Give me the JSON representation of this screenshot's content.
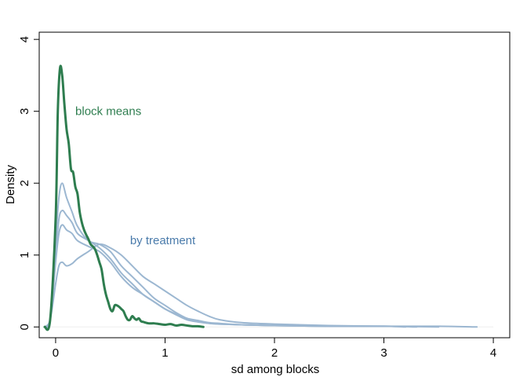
{
  "chart_data": {
    "type": "line",
    "title": "",
    "xlabel": "sd among blocks",
    "ylabel": "Density",
    "xlim": [
      -0.15,
      4.15
    ],
    "ylim": [
      -0.15,
      4.1
    ],
    "x_ticks": [
      0,
      1,
      2,
      3,
      4
    ],
    "y_ticks": [
      0,
      1,
      2,
      3,
      4
    ],
    "x_tick_labels": [
      "0",
      "1",
      "2",
      "3",
      "4"
    ],
    "y_tick_labels": [
      "0",
      "1",
      "2",
      "3",
      "4"
    ],
    "grid": false,
    "legend": "none",
    "colors": {
      "block_means": "#2e7d4f",
      "by_treatment": "#9cb7d1",
      "by_treatment_text": "#4a7bab"
    },
    "annotations": [
      {
        "text": "block means",
        "x": 0.18,
        "y": 2.95,
        "color": "#2e7d4f"
      },
      {
        "text": "by treatment",
        "x": 0.68,
        "y": 1.15,
        "color": "#4a7bab"
      }
    ],
    "series": [
      {
        "group": "block means",
        "x": [
          -0.1,
          -0.05,
          0,
          0.02,
          0.04,
          0.06,
          0.08,
          0.1,
          0.12,
          0.14,
          0.16,
          0.18,
          0.2,
          0.22,
          0.24,
          0.26,
          0.28,
          0.3,
          0.32,
          0.34,
          0.36,
          0.38,
          0.4,
          0.42,
          0.44,
          0.46,
          0.48,
          0.5,
          0.52,
          0.54,
          0.56,
          0.58,
          0.6,
          0.62,
          0.64,
          0.66,
          0.68,
          0.7,
          0.72,
          0.74,
          0.76,
          0.78,
          0.8,
          0.85,
          0.9,
          0.95,
          1.0,
          1.05,
          1.1,
          1.15,
          1.2,
          1.25,
          1.3,
          1.35
        ],
        "y": [
          0,
          0.1,
          1.5,
          3.0,
          3.6,
          3.5,
          3.1,
          2.75,
          2.55,
          2.2,
          2.15,
          1.95,
          1.85,
          1.6,
          1.45,
          1.35,
          1.28,
          1.22,
          1.15,
          1.12,
          1.08,
          1.0,
          0.9,
          0.8,
          0.6,
          0.45,
          0.35,
          0.25,
          0.22,
          0.3,
          0.3,
          0.28,
          0.25,
          0.22,
          0.15,
          0.1,
          0.1,
          0.15,
          0.12,
          0.1,
          0.12,
          0.08,
          0.07,
          0.05,
          0.05,
          0.04,
          0.03,
          0.04,
          0.02,
          0.03,
          0.02,
          0.01,
          0.01,
          0.0
        ]
      },
      {
        "group": "by treatment",
        "x": [
          -0.1,
          -0.05,
          0,
          0.03,
          0.06,
          0.1,
          0.15,
          0.2,
          0.3,
          0.4,
          0.5,
          0.6,
          0.7,
          0.8,
          0.9,
          1.0,
          1.1,
          1.2,
          1.3,
          1.4,
          1.5,
          1.7,
          2.0,
          2.5,
          3.0,
          3.2
        ],
        "y": [
          0,
          0.1,
          1.2,
          1.8,
          2.0,
          1.8,
          1.6,
          1.4,
          1.2,
          1.15,
          1.05,
          0.85,
          0.7,
          0.55,
          0.4,
          0.3,
          0.2,
          0.12,
          0.08,
          0.05,
          0.04,
          0.03,
          0.02,
          0.01,
          0.01,
          0.0
        ]
      },
      {
        "group": "by treatment",
        "x": [
          -0.1,
          -0.05,
          0,
          0.03,
          0.06,
          0.1,
          0.15,
          0.2,
          0.3,
          0.4,
          0.5,
          0.6,
          0.7,
          0.8,
          0.9,
          1.0,
          1.1,
          1.2,
          1.3,
          1.4,
          1.5,
          1.7,
          2.0,
          2.5,
          3.0,
          3.3
        ],
        "y": [
          0,
          0.1,
          1.0,
          1.5,
          1.62,
          1.55,
          1.45,
          1.3,
          1.2,
          1.1,
          0.95,
          0.75,
          0.6,
          0.45,
          0.35,
          0.25,
          0.17,
          0.1,
          0.07,
          0.05,
          0.04,
          0.03,
          0.02,
          0.01,
          0.01,
          0.0
        ]
      },
      {
        "group": "by treatment",
        "x": [
          -0.1,
          -0.05,
          0,
          0.03,
          0.06,
          0.1,
          0.15,
          0.2,
          0.3,
          0.4,
          0.5,
          0.6,
          0.7,
          0.8,
          0.9,
          1.0,
          1.1,
          1.2,
          1.3,
          1.4,
          1.5,
          1.7,
          2.0,
          2.5,
          3.0,
          3.5
        ],
        "y": [
          0,
          0.1,
          0.9,
          1.3,
          1.42,
          1.35,
          1.3,
          1.2,
          1.12,
          1.05,
          0.9,
          0.7,
          0.55,
          0.45,
          0.35,
          0.25,
          0.18,
          0.12,
          0.09,
          0.06,
          0.05,
          0.03,
          0.02,
          0.01,
          0.01,
          0.0
        ]
      },
      {
        "group": "by treatment",
        "x": [
          -0.1,
          -0.05,
          0,
          0.03,
          0.06,
          0.1,
          0.15,
          0.2,
          0.3,
          0.4,
          0.5,
          0.6,
          0.7,
          0.8,
          0.9,
          1.0,
          1.1,
          1.2,
          1.3,
          1.4,
          1.5,
          1.7,
          2.0,
          2.5,
          3.0,
          3.5,
          3.85
        ],
        "y": [
          0,
          0.1,
          0.6,
          0.85,
          0.9,
          0.85,
          0.88,
          0.95,
          1.05,
          1.15,
          1.1,
          1.0,
          0.85,
          0.7,
          0.6,
          0.5,
          0.4,
          0.3,
          0.22,
          0.15,
          0.1,
          0.06,
          0.04,
          0.02,
          0.01,
          0.01,
          0.0
        ]
      }
    ]
  }
}
